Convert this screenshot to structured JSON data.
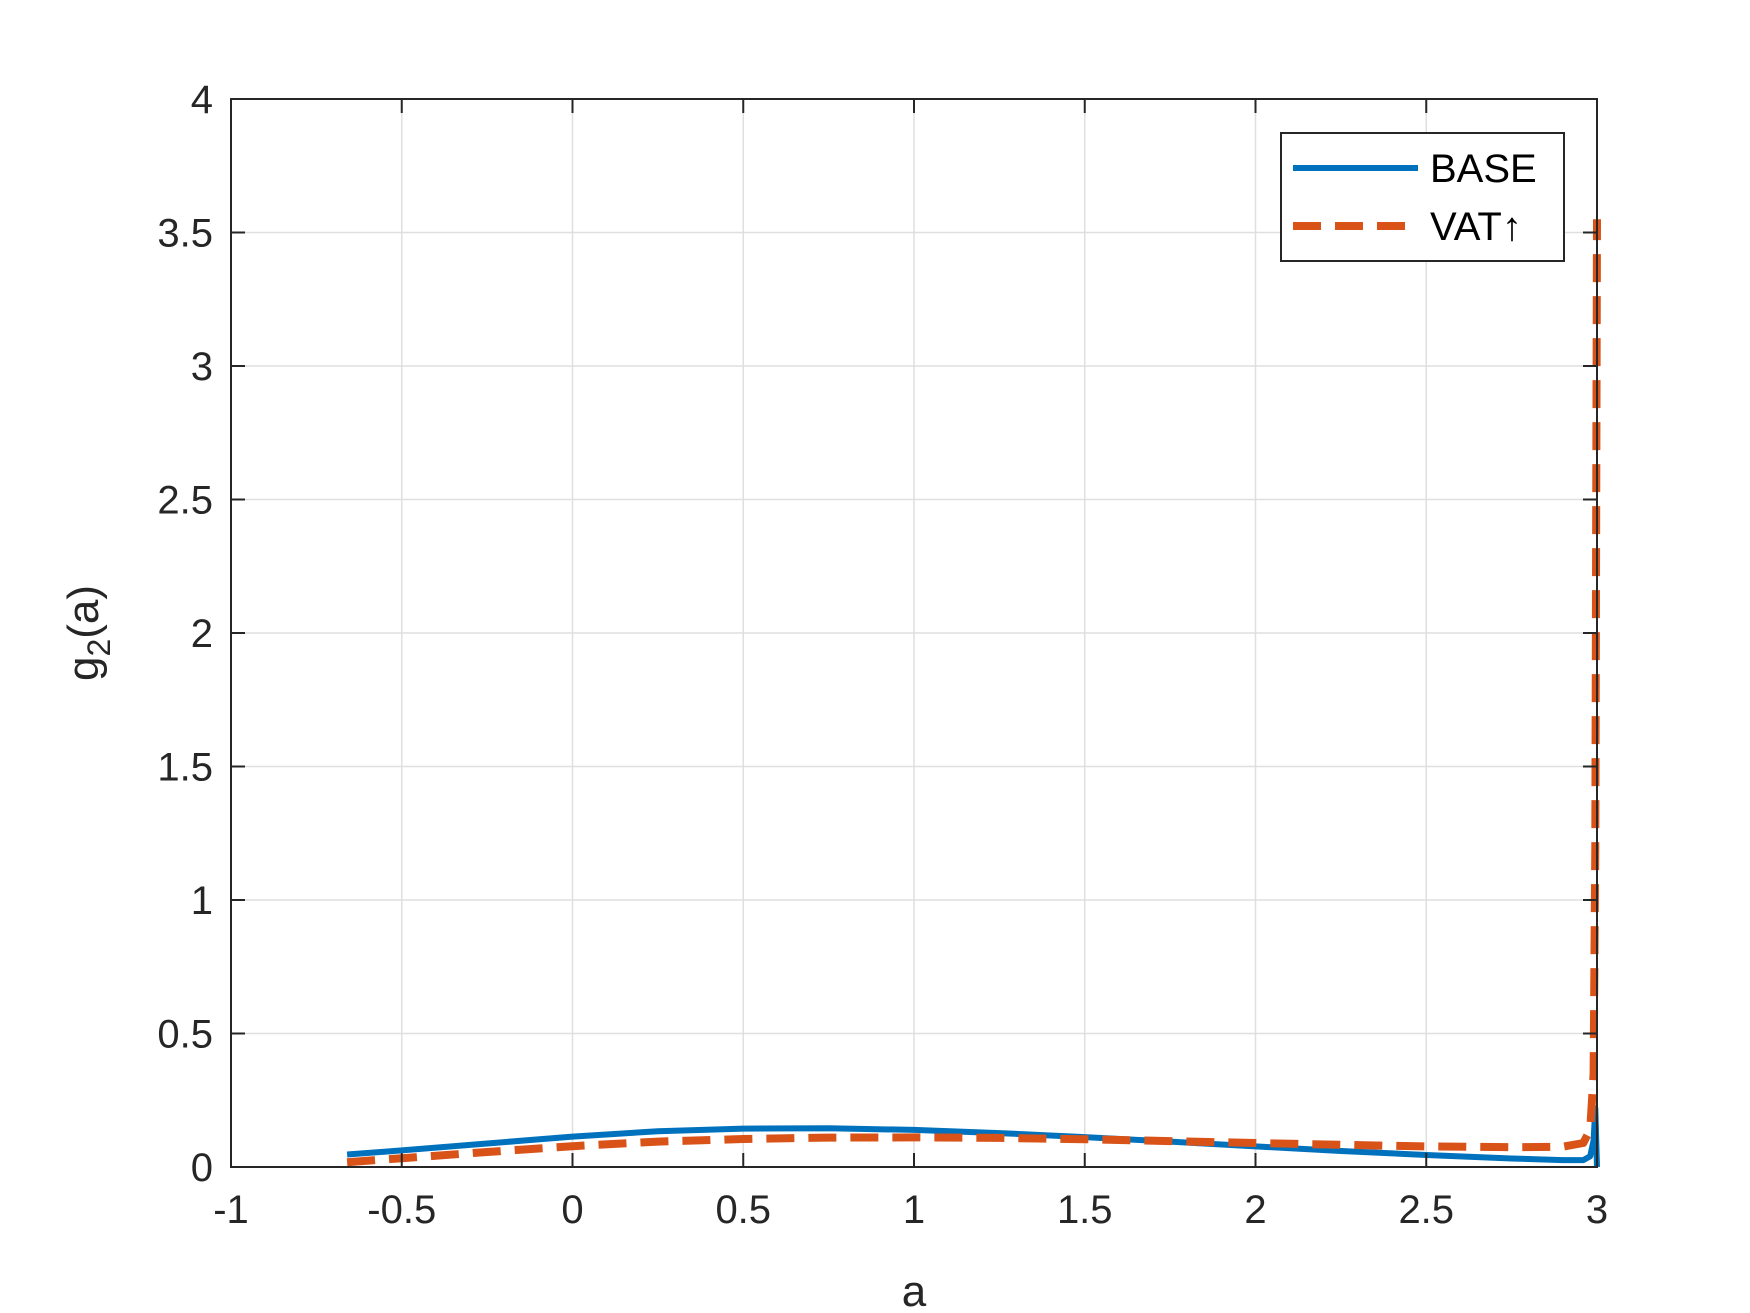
{
  "chart_data": {
    "type": "line",
    "xlabel": "a",
    "ylabel_main": "g",
    "ylabel_sub": "2",
    "ylabel_tail": "(a)",
    "xlim": [
      -1,
      3
    ],
    "ylim": [
      0,
      4
    ],
    "xticks": [
      -1,
      -0.5,
      0,
      0.5,
      1,
      1.5,
      2,
      2.5,
      3
    ],
    "xtick_labels": [
      "-1",
      "-0.5",
      "0",
      "0.5",
      "1",
      "1.5",
      "2",
      "2.5",
      "3"
    ],
    "yticks": [
      0,
      0.5,
      1,
      1.5,
      2,
      2.5,
      3,
      3.5,
      4
    ],
    "ytick_labels": [
      "0",
      "0.5",
      "1",
      "1.5",
      "2",
      "2.5",
      "3",
      "3.5",
      "4"
    ],
    "grid": true,
    "legend_position": "top-right",
    "series": [
      {
        "name": "BASE",
        "color": "#0072BD",
        "style": "solid",
        "x": [
          -0.66,
          -0.5,
          -0.25,
          0,
          0.25,
          0.5,
          0.75,
          1,
          1.25,
          1.5,
          1.75,
          2,
          2.25,
          2.5,
          2.75,
          2.9,
          2.96,
          2.98,
          2.99,
          2.995,
          3.0
        ],
        "y": [
          0.047,
          0.062,
          0.088,
          0.114,
          0.134,
          0.144,
          0.145,
          0.139,
          0.127,
          0.112,
          0.095,
          0.077,
          0.06,
          0.045,
          0.032,
          0.026,
          0.026,
          0.04,
          0.1,
          0.22,
          0.0
        ]
      },
      {
        "name": "VAT↑",
        "color": "#D95319",
        "style": "dashed",
        "x": [
          -0.66,
          -0.5,
          -0.25,
          0,
          0.25,
          0.5,
          0.75,
          1,
          1.25,
          1.5,
          1.75,
          2,
          2.25,
          2.5,
          2.75,
          2.9,
          2.96,
          2.98,
          2.99,
          2.995,
          2.998,
          3.0
        ],
        "y": [
          0.018,
          0.033,
          0.056,
          0.078,
          0.095,
          0.105,
          0.11,
          0.111,
          0.109,
          0.104,
          0.097,
          0.09,
          0.083,
          0.077,
          0.074,
          0.076,
          0.09,
          0.14,
          0.35,
          1.2,
          2.6,
          3.55
        ]
      }
    ]
  }
}
